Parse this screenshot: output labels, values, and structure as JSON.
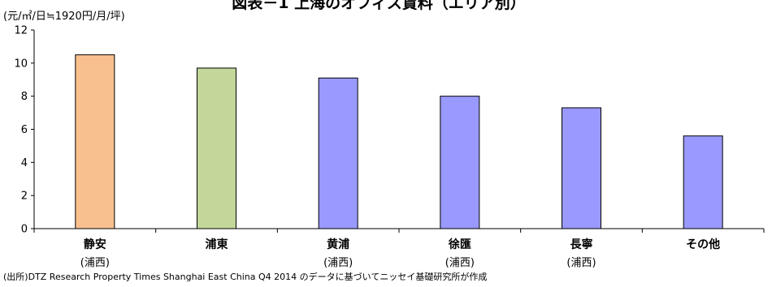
{
  "page": {
    "title": "図表－1 上海のオフィス賃料（エリア別）",
    "unit": "(元/㎡/日≒1920円/月/坪)",
    "source": "(出所)DTZ Research Property Times Shanghai  East China  Q4 2014 のデータに基づいてニッセイ基礎研究所が作成"
  },
  "chart_data": {
    "type": "bar",
    "categories": [
      {
        "name": "静安",
        "sub": "(浦西)",
        "value": 10.5,
        "color": "#F9C08F"
      },
      {
        "name": "浦東",
        "sub": "",
        "value": 9.7,
        "color": "#C4D79B"
      },
      {
        "name": "黄浦",
        "sub": "(浦西)",
        "value": 9.1,
        "color": "#9999FF"
      },
      {
        "name": "徐匯",
        "sub": "(浦西)",
        "value": 8.0,
        "color": "#9999FF"
      },
      {
        "name": "長寧",
        "sub": "(浦西)",
        "value": 7.3,
        "color": "#9999FF"
      },
      {
        "name": "その他",
        "sub": "",
        "value": 5.6,
        "color": "#9999FF"
      }
    ],
    "ylim": [
      0,
      12
    ],
    "yticks": [
      "0",
      "2",
      "4",
      "6",
      "8",
      "10",
      "12"
    ],
    "grid": false
  }
}
